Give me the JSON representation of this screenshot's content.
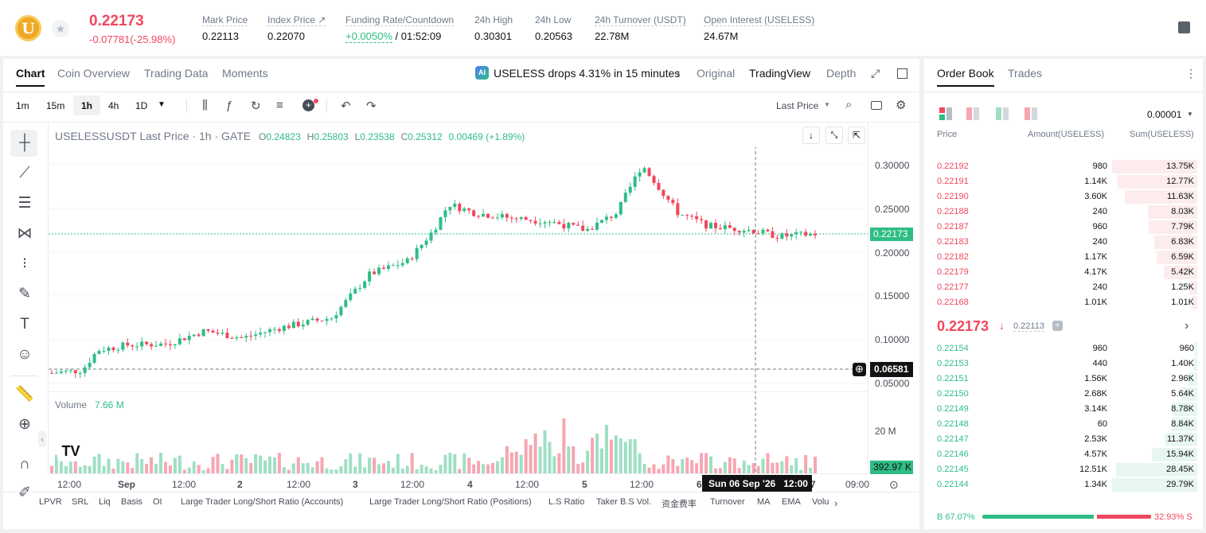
{
  "ticker": {
    "coin_letter": "U",
    "last_price": "0.22173",
    "change": "-0.07781(-25.98%)",
    "stats": [
      {
        "label": "Mark Price",
        "value": "0.22113"
      },
      {
        "label": "Index Price ↗",
        "value": "0.22070"
      },
      {
        "label": "Funding Rate/Countdown",
        "value_pos": "+0.0050%",
        "value": "/ 01:52:09"
      },
      {
        "label": "24h High",
        "value": "0.30301"
      },
      {
        "label": "24h Low",
        "value": "0.20563"
      },
      {
        "label": "24h Turnover (USDT)",
        "value": "22.78M"
      },
      {
        "label": "Open Interest (USELESS)",
        "value": "24.67M"
      }
    ]
  },
  "chart_tabs": [
    "Chart",
    "Coin Overview",
    "Trading Data",
    "Moments"
  ],
  "ai_banner": "USELESS drops 4.31% in 15 minutes",
  "view_tabs": [
    "Original",
    "TradingView",
    "Depth"
  ],
  "intervals": [
    "1m",
    "15m",
    "1h",
    "4h",
    "1D"
  ],
  "price_type": "Last Price",
  "chart_header": {
    "symbol": "USELESSUSDT Last Price · 1h · GATE",
    "o_label": "O",
    "o": "0.24823",
    "h_label": "H",
    "h": "0.25803",
    "l_label": "L",
    "l": "0.23538",
    "c_label": "C",
    "c": "0.25312",
    "chg": "0.00469 (+1.89%)"
  },
  "volume": {
    "label": "Volume",
    "value": "7.66 M",
    "axis_label": "20 M",
    "current": "392.97 K"
  },
  "price_axis": [
    "0.30000",
    "0.25000",
    "0.20000",
    "0.15000",
    "0.10000",
    "0.05000"
  ],
  "current_price_tag": "0.22173",
  "cursor_price_tag": "0.06581",
  "time_axis": [
    "12:00",
    "Sep",
    "12:00",
    "2",
    "12:00",
    "3",
    "12:00",
    "4",
    "12:00",
    "5",
    "12:00",
    "6",
    "7",
    "09:00"
  ],
  "cursor_time": "Sun 06 Sep '26   12:00",
  "indicators": [
    "LPVR",
    "SRL",
    "Liq",
    "Basis",
    "OI",
    "Large Trader Long/Short Ratio (Accounts)",
    "Large Trader Long/Short Ratio (Positions)",
    "L.S Ratio",
    "Taker B.S Vol.",
    "资金费率",
    "Turnover",
    "MA",
    "EMA",
    "Volu"
  ],
  "order_book": {
    "tabs": [
      "Order Book",
      "Trades"
    ],
    "precision": "0.00001",
    "headers": [
      "Price",
      "Amount(USELESS)",
      "Sum(USELESS)"
    ],
    "asks": [
      {
        "price": "0.22192",
        "amount": "980",
        "sum": "13.75K",
        "depth": 1.0,
        "amt_fill": 0.0
      },
      {
        "price": "0.22191",
        "amount": "1.14K",
        "sum": "12.77K",
        "depth": 0.93,
        "amt_fill": 0.34
      },
      {
        "price": "0.22190",
        "amount": "3.60K",
        "sum": "11.63K",
        "depth": 0.85,
        "amt_fill": 0.0
      },
      {
        "price": "0.22188",
        "amount": "240",
        "sum": "8.03K",
        "depth": 0.58,
        "amt_fill": 0.0
      },
      {
        "price": "0.22187",
        "amount": "960",
        "sum": "7.79K",
        "depth": 0.57,
        "amt_fill": 0.0
      },
      {
        "price": "0.22183",
        "amount": "240",
        "sum": "6.83K",
        "depth": 0.5,
        "amt_fill": 0.0
      },
      {
        "price": "0.22182",
        "amount": "1.17K",
        "sum": "6.59K",
        "depth": 0.48,
        "amt_fill": 0.0
      },
      {
        "price": "0.22179",
        "amount": "4.17K",
        "sum": "5.42K",
        "depth": 0.39,
        "amt_fill": 0.0
      },
      {
        "price": "0.22177",
        "amount": "240",
        "sum": "1.25K",
        "depth": 0.09,
        "amt_fill": 0.0
      },
      {
        "price": "0.22168",
        "amount": "1.01K",
        "sum": "1.01K",
        "depth": 0.07,
        "amt_fill": 0.0
      }
    ],
    "mid_price": "0.22173",
    "mark_price": "0.22113",
    "bids": [
      {
        "price": "0.22154",
        "amount": "960",
        "sum": "960",
        "depth": 0.03
      },
      {
        "price": "0.22153",
        "amount": "440",
        "sum": "1.40K",
        "depth": 0.05
      },
      {
        "price": "0.22151",
        "amount": "1.56K",
        "sum": "2.96K",
        "depth": 0.1
      },
      {
        "price": "0.22150",
        "amount": "2.68K",
        "sum": "5.64K",
        "depth": 0.19
      },
      {
        "price": "0.22149",
        "amount": "3.14K",
        "sum": "8.78K",
        "depth": 0.29
      },
      {
        "price": "0.22148",
        "amount": "60",
        "sum": "8.84K",
        "depth": 0.3
      },
      {
        "price": "0.22147",
        "amount": "2.53K",
        "sum": "11.37K",
        "depth": 0.38
      },
      {
        "price": "0.22146",
        "amount": "4.57K",
        "sum": "15.94K",
        "depth": 0.53
      },
      {
        "price": "0.22145",
        "amount": "12.51K",
        "sum": "28.45K",
        "depth": 0.95
      },
      {
        "price": "0.22144",
        "amount": "1.34K",
        "sum": "29.79K",
        "depth": 1.0
      }
    ],
    "buy_ratio": "B 67.07%",
    "sell_ratio": "32.93% S",
    "buy_fraction": 0.6707
  },
  "colors": {
    "up": "#2ebd85",
    "down": "#f0475d",
    "text": "#121214",
    "muted": "#707a8a"
  }
}
